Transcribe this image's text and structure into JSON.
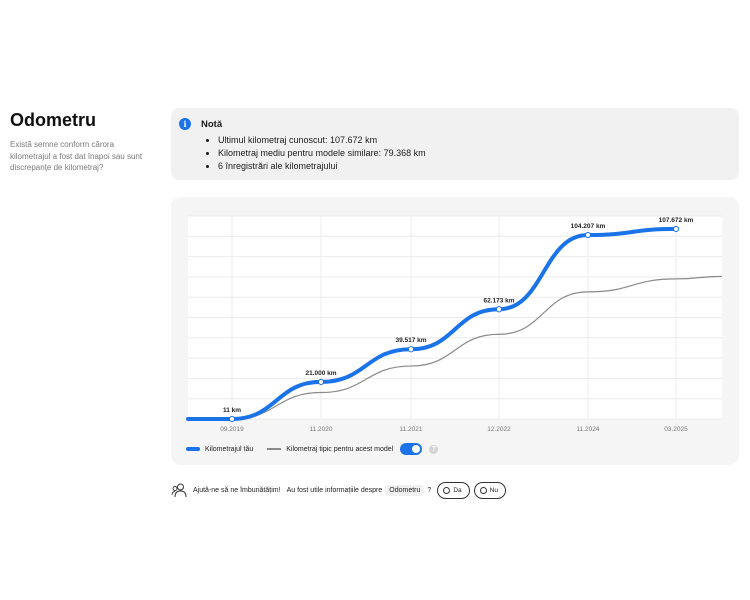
{
  "header": {
    "title": "Odometru",
    "subtitle": "Există semne conform cărora kilometrajul a fost dat înapoi sau sunt discrepanțe de kilometraj?"
  },
  "note": {
    "icon": "info-icon",
    "title": "Notă",
    "items": [
      "Ultimul kilometraj cunoscut: 107.672 km",
      "Kilometraj mediu pentru modele similare: 79.368 km",
      "6 înregistrări ale kilometrajului"
    ]
  },
  "chart_data": {
    "type": "line",
    "title": "",
    "xlabel": "",
    "ylabel": "",
    "x_ticks": [
      "09.2019",
      "11.2020",
      "11.2021",
      "12.2022",
      "11.2024",
      "03.2025"
    ],
    "series": [
      {
        "name": "Kilometrajul tău",
        "color": "#1a73e8",
        "points": [
          {
            "x": "09.2019",
            "y": 11,
            "label": "11 km"
          },
          {
            "x": "11.2020",
            "y": 21000,
            "label": "21.000 km"
          },
          {
            "x": "11.2021",
            "y": 39517,
            "label": "39.517 km"
          },
          {
            "x": "12.2022",
            "y": 62173,
            "label": "62.173 km"
          },
          {
            "x": "11.2024",
            "y": 104207,
            "label": "104.207 km"
          },
          {
            "x": "03.2025",
            "y": 107672,
            "label": "107.672 km"
          }
        ]
      },
      {
        "name": "Kilometraj tipic pentru acest model",
        "color": "#8a8a8a",
        "points": [
          {
            "x": "09.2019",
            "y": 0
          },
          {
            "x": "11.2020",
            "y": 15000
          },
          {
            "x": "11.2021",
            "y": 30000
          },
          {
            "x": "12.2022",
            "y": 48000
          },
          {
            "x": "11.2024",
            "y": 72000
          },
          {
            "x": "03.2025",
            "y": 79368
          }
        ]
      }
    ],
    "ylim": [
      0,
      115000
    ],
    "grid": true,
    "legend": "bottom-left"
  },
  "legend": {
    "series1": "Kilometrajul tău",
    "series2": "Kilometraj tipic pentru acest model",
    "toggle_on": true,
    "help_icon": "question-icon"
  },
  "feedback": {
    "icon": "feedback-people-icon",
    "prompt": "Ajută-ne să ne îmbunătățim!",
    "question_pre": "Au fost utile informațiile despre",
    "topic": "Odometru",
    "question_post": "?",
    "yes_label": "Da",
    "no_label": "Nu"
  },
  "colors": {
    "accent": "#1a73e8",
    "typical_line": "#8a8a8a",
    "card_bg": "#f5f5f5"
  }
}
